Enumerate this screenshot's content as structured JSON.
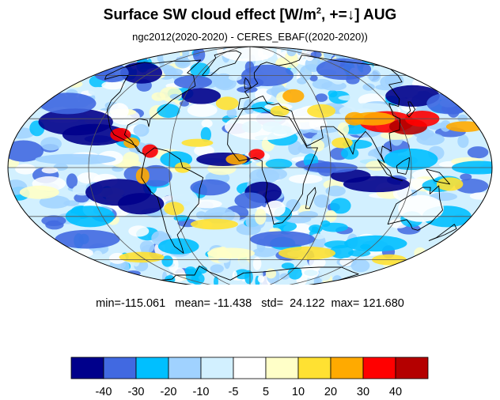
{
  "title": {
    "main": "Surface SW cloud effect [W/m",
    "sup": "2",
    "rest": ", +=↓]  AUG"
  },
  "subtitle": "ngc2012(2020-2020) - CERES_EBAF((2020-2020))",
  "stats": {
    "min_label": "min=",
    "min": "-115.061",
    "mean_label": "mean=",
    "mean": "-11.438",
    "std_label": "std=",
    "std": "24.122",
    "max_label": "max=",
    "max": "121.680"
  },
  "colorbar": {
    "colors": [
      "#00008b",
      "#4169e1",
      "#00bfff",
      "#a0d2ff",
      "#d2f0ff",
      "#ffffff",
      "#ffffc8",
      "#ffe132",
      "#ffaa00",
      "#ff0000",
      "#b40000"
    ],
    "labels": [
      "-40",
      "-30",
      "-20",
      "-10",
      "-5",
      "5",
      "10",
      "20",
      "30",
      "40"
    ]
  },
  "map": {
    "projection": "mollweide",
    "ocean_base": "#d2f0ff"
  }
}
